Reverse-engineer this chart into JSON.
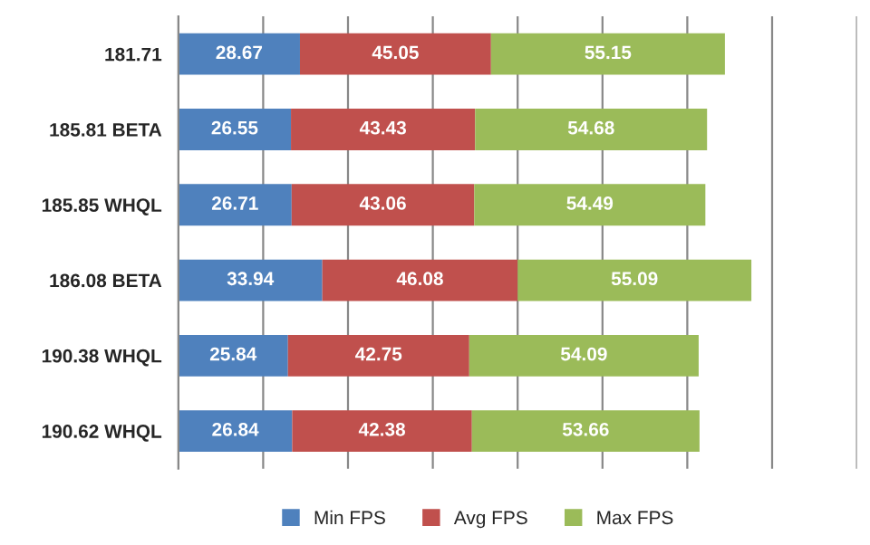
{
  "chart_data": {
    "type": "bar",
    "orientation": "horizontal",
    "stacked": true,
    "categories": [
      "181.71",
      "185.81 BETA",
      "185.85 WHQL",
      "186.08 BETA",
      "190.38 WHQL",
      "190.62 WHQL"
    ],
    "series": [
      {
        "name": "Min FPS",
        "color": "#4f81bd",
        "values": [
          28.67,
          26.55,
          26.71,
          33.94,
          25.84,
          26.84
        ]
      },
      {
        "name": "Avg FPS",
        "color": "#c0504d",
        "values": [
          45.05,
          43.43,
          43.06,
          46.08,
          42.75,
          42.38
        ]
      },
      {
        "name": "Max FPS",
        "color": "#9bbb59",
        "values": [
          55.15,
          54.68,
          54.49,
          55.09,
          54.09,
          53.66
        ]
      }
    ],
    "xlim": [
      0,
      160
    ],
    "xticks": [
      {
        "value": 0,
        "label": null
      },
      {
        "value": 20,
        "label": null
      },
      {
        "value": 40,
        "label": null
      },
      {
        "value": 60,
        "label": null
      },
      {
        "value": 80,
        "label": null
      },
      {
        "value": 100,
        "label": null
      },
      {
        "value": 120,
        "label": null
      },
      {
        "value": 140,
        "label": null
      },
      {
        "value": 160,
        "label": null
      }
    ],
    "tick_labels": "y",
    "grid": "x",
    "legend": "bottom",
    "data_labels": true
  }
}
